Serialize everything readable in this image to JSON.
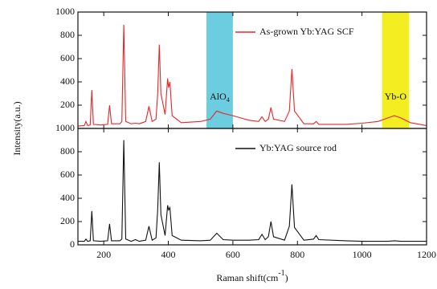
{
  "chart_data": [
    {
      "type": "line",
      "ylabel": "Intensity(a.u.)",
      "xlim": [
        120,
        1200
      ],
      "xticks": [
        200,
        400,
        600,
        800,
        1000,
        1200
      ],
      "ylim": [
        0,
        1000
      ],
      "yticks": [
        200,
        400,
        600,
        800,
        1000
      ],
      "legend": "top-right",
      "bands": [
        {
          "from": 518,
          "to": 600,
          "color": "#6ccde0"
        },
        {
          "from": 1062,
          "to": 1146,
          "color": "#f2ee22"
        }
      ],
      "annotations": [
        {
          "text": "AlO",
          "sub": "4"
        },
        {
          "text": "Yb-O"
        }
      ],
      "x": [
        120,
        140,
        145,
        150,
        158,
        163,
        168,
        190,
        212,
        218,
        224,
        250,
        256,
        262,
        268,
        285,
        298,
        310,
        330,
        340,
        350,
        362,
        367,
        372,
        377,
        390,
        398,
        401,
        405,
        412,
        440,
        500,
        530,
        550,
        570,
        600,
        650,
        680,
        690,
        700,
        710,
        718,
        726,
        760,
        775,
        783,
        791,
        820,
        850,
        858,
        866,
        950,
        1000,
        1050,
        1080,
        1100,
        1120,
        1150,
        1200
      ],
      "series": [
        {
          "name": "As-grown Yb:YAG SCF",
          "color": "#e8262a",
          "values": [
            20,
            25,
            60,
            25,
            30,
            330,
            35,
            30,
            35,
            200,
            40,
            40,
            60,
            890,
            60,
            40,
            45,
            40,
            60,
            190,
            60,
            80,
            300,
            720,
            300,
            120,
            430,
            350,
            400,
            110,
            50,
            60,
            80,
            150,
            130,
            110,
            70,
            60,
            100,
            60,
            80,
            180,
            80,
            60,
            150,
            510,
            150,
            40,
            40,
            60,
            35,
            35,
            45,
            60,
            90,
            110,
            90,
            50,
            25
          ]
        }
      ]
    },
    {
      "type": "line",
      "xlabel": "Raman shift(cm",
      "xlabel_sup": "-1",
      "xlabel_end": ")",
      "xlim": [
        120,
        1200
      ],
      "xticks": [
        200,
        400,
        600,
        800,
        1000,
        1200
      ],
      "ylim": [
        0,
        1000
      ],
      "yticks": [
        0,
        200,
        400,
        600,
        800,
        1000
      ],
      "legend": "top-right",
      "x": [
        120,
        140,
        145,
        150,
        158,
        163,
        168,
        190,
        212,
        218,
        224,
        250,
        256,
        262,
        268,
        285,
        298,
        310,
        330,
        340,
        350,
        362,
        367,
        372,
        377,
        390,
        398,
        401,
        405,
        412,
        440,
        500,
        530,
        550,
        570,
        600,
        650,
        680,
        690,
        700,
        710,
        718,
        726,
        760,
        775,
        783,
        791,
        820,
        850,
        858,
        866,
        950,
        1000,
        1050,
        1080,
        1100,
        1120,
        1150,
        1200
      ],
      "series": [
        {
          "name": "Yb:YAG source rod",
          "color": "#111111",
          "values": [
            30,
            30,
            50,
            30,
            35,
            290,
            35,
            30,
            35,
            180,
            35,
            35,
            50,
            900,
            50,
            30,
            45,
            30,
            40,
            160,
            40,
            60,
            300,
            710,
            260,
            80,
            340,
            300,
            320,
            80,
            40,
            35,
            40,
            100,
            45,
            40,
            40,
            45,
            90,
            45,
            70,
            200,
            70,
            40,
            160,
            520,
            150,
            40,
            50,
            80,
            45,
            35,
            30,
            30,
            30,
            35,
            30,
            30,
            30
          ]
        }
      ]
    }
  ]
}
